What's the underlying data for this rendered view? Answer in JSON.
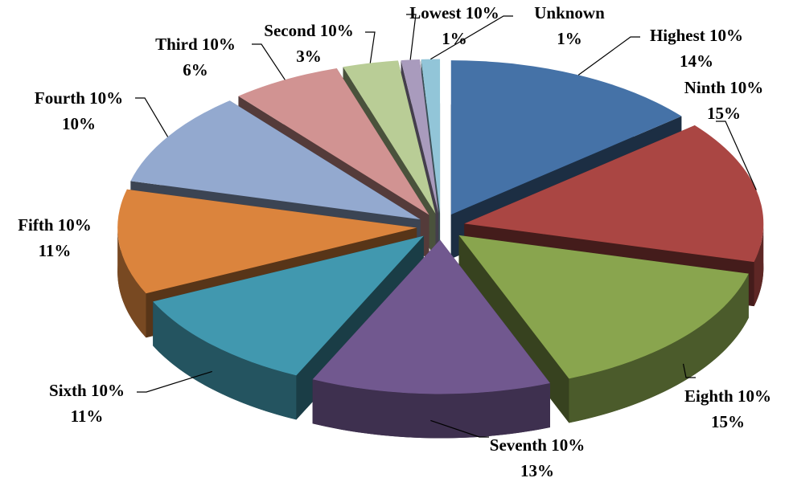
{
  "chart_data": {
    "type": "pie",
    "categories": [
      "Highest 10%",
      "Ninth 10%",
      "Eighth 10%",
      "Seventh 10%",
      "Sixth 10%",
      "Fifth 10%",
      "Fourth 10%",
      "Third 10%",
      "Second 10%",
      "Lowest 10%",
      "Unknown"
    ],
    "values": [
      14,
      15,
      15,
      13,
      11,
      11,
      10,
      6,
      3,
      1,
      1
    ],
    "value_labels": [
      "14%",
      "15%",
      "15%",
      "13%",
      "11%",
      "11%",
      "10%",
      "6%",
      "3%",
      "1%",
      "1%"
    ],
    "colors": [
      "#4572a7",
      "#aa4643",
      "#89a54e",
      "#71588f",
      "#4198af",
      "#db843d",
      "#93a9cf",
      "#d19392",
      "#b9cd96",
      "#a99bbd",
      "#92c5d8"
    ],
    "exploded": true,
    "three_d": true
  }
}
